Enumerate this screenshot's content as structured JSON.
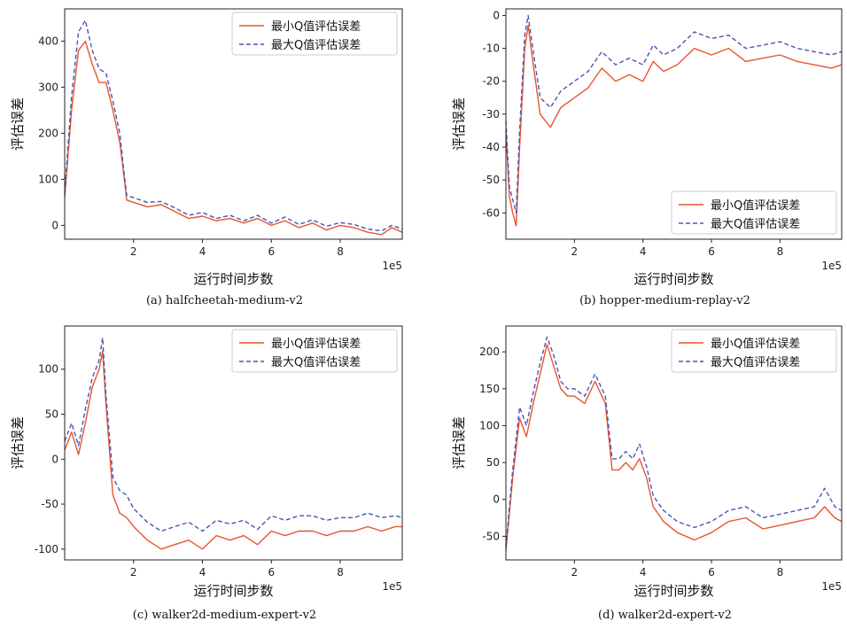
{
  "colors": {
    "min_series": "#e8542f",
    "max_series": "#4a55b5",
    "axis": "#222222"
  },
  "chart_data": [
    {
      "type": "line",
      "caption": "(a) halfcheetah-medium-v2",
      "xlabel": "运行时间步数",
      "ylabel": "评估误差",
      "x_multiplier": "1e5",
      "xlim": [
        0,
        9.8
      ],
      "ylim": [
        -30,
        470
      ],
      "xticks": [
        2,
        4,
        6,
        8
      ],
      "yticks": [
        0,
        100,
        200,
        300,
        400
      ],
      "legend": {
        "position": "top-right"
      },
      "series": [
        {
          "name": "最小Q值评估误差",
          "style": "solid",
          "x": [
            0,
            0.2,
            0.4,
            0.6,
            0.8,
            1.0,
            1.2,
            1.4,
            1.6,
            1.7,
            1.8,
            2.0,
            2.4,
            2.8,
            3.2,
            3.6,
            4.0,
            4.4,
            4.8,
            5.2,
            5.6,
            6.0,
            6.4,
            6.8,
            7.2,
            7.6,
            8.0,
            8.4,
            8.8,
            9.2,
            9.5,
            9.8
          ],
          "values": [
            60,
            250,
            380,
            400,
            350,
            310,
            310,
            250,
            180,
            120,
            55,
            50,
            40,
            45,
            30,
            15,
            20,
            10,
            15,
            5,
            15,
            0,
            10,
            -5,
            5,
            -10,
            0,
            -5,
            -15,
            -20,
            -5,
            -15
          ]
        },
        {
          "name": "最大Q值评估误差",
          "style": "dashed",
          "x": [
            0,
            0.2,
            0.4,
            0.6,
            0.8,
            1.0,
            1.2,
            1.4,
            1.6,
            1.7,
            1.8,
            2.0,
            2.4,
            2.8,
            3.2,
            3.6,
            4.0,
            4.4,
            4.8,
            5.2,
            5.6,
            6.0,
            6.4,
            6.8,
            7.2,
            7.6,
            8.0,
            8.4,
            8.8,
            9.2,
            9.5,
            9.8
          ],
          "values": [
            70,
            280,
            420,
            445,
            380,
            340,
            330,
            270,
            200,
            130,
            65,
            60,
            50,
            52,
            38,
            22,
            28,
            15,
            22,
            10,
            22,
            5,
            18,
            2,
            12,
            -2,
            6,
            2,
            -8,
            -12,
            0,
            -8
          ]
        }
      ]
    },
    {
      "type": "line",
      "caption": "(b) hopper-medium-replay-v2",
      "xlabel": "运行时间步数",
      "ylabel": "评估误差",
      "x_multiplier": "1e5",
      "xlim": [
        0,
        9.8
      ],
      "ylim": [
        -68,
        2
      ],
      "xticks": [
        2,
        4,
        6,
        8
      ],
      "yticks": [
        0,
        -10,
        -20,
        -30,
        -40,
        -50,
        -60
      ],
      "legend": {
        "position": "bottom-right"
      },
      "series": [
        {
          "name": "最小Q值评估误差",
          "style": "solid",
          "x": [
            0,
            0.1,
            0.2,
            0.3,
            0.4,
            0.55,
            0.65,
            0.8,
            1.0,
            1.3,
            1.6,
            2.0,
            2.4,
            2.8,
            3.2,
            3.6,
            4.0,
            4.3,
            4.6,
            5.0,
            5.5,
            6.0,
            6.5,
            7.0,
            7.5,
            8.0,
            8.5,
            9.0,
            9.5,
            9.8
          ],
          "values": [
            -35,
            -55,
            -60,
            -64,
            -40,
            -10,
            -3,
            -15,
            -30,
            -34,
            -28,
            -25,
            -22,
            -16,
            -20,
            -18,
            -20,
            -14,
            -17,
            -15,
            -10,
            -12,
            -10,
            -14,
            -13,
            -12,
            -14,
            -15,
            -16,
            -15
          ]
        },
        {
          "name": "最大Q值评估误差",
          "style": "dashed",
          "x": [
            0,
            0.1,
            0.2,
            0.3,
            0.4,
            0.55,
            0.65,
            0.8,
            1.0,
            1.3,
            1.6,
            2.0,
            2.4,
            2.8,
            3.2,
            3.6,
            4.0,
            4.3,
            4.6,
            5.0,
            5.5,
            6.0,
            6.5,
            7.0,
            7.5,
            8.0,
            8.5,
            9.0,
            9.5,
            9.8
          ],
          "values": [
            -32,
            -52,
            -56,
            -60,
            -35,
            -6,
            0,
            -11,
            -25,
            -28,
            -23,
            -20,
            -17,
            -11,
            -15,
            -13,
            -15,
            -9,
            -12,
            -10,
            -5,
            -7,
            -6,
            -10,
            -9,
            -8,
            -10,
            -11,
            -12,
            -11
          ]
        }
      ]
    },
    {
      "type": "line",
      "caption": "(c) walker2d-medium-expert-v2",
      "xlabel": "运行时间步数",
      "ylabel": "评估误差",
      "x_multiplier": "1e5",
      "xlim": [
        0,
        9.8
      ],
      "ylim": [
        -112,
        148
      ],
      "xticks": [
        2,
        4,
        6,
        8
      ],
      "yticks": [
        100,
        50,
        0,
        -50,
        -100
      ],
      "legend": {
        "position": "top-right"
      },
      "series": [
        {
          "name": "最小Q值评估误差",
          "style": "solid",
          "x": [
            0,
            0.2,
            0.4,
            0.6,
            0.8,
            1.0,
            1.1,
            1.2,
            1.4,
            1.6,
            1.8,
            2.0,
            2.4,
            2.8,
            3.2,
            3.6,
            4.0,
            4.4,
            4.8,
            5.2,
            5.6,
            6.0,
            6.4,
            6.8,
            7.2,
            7.6,
            8.0,
            8.4,
            8.8,
            9.2,
            9.6,
            9.8
          ],
          "values": [
            10,
            30,
            5,
            40,
            80,
            100,
            120,
            60,
            -40,
            -60,
            -65,
            -75,
            -90,
            -100,
            -95,
            -90,
            -100,
            -85,
            -90,
            -85,
            -95,
            -80,
            -85,
            -80,
            -80,
            -85,
            -80,
            -80,
            -75,
            -80,
            -75,
            -75
          ]
        },
        {
          "name": "最大Q值评估误差",
          "style": "dashed",
          "x": [
            0,
            0.2,
            0.4,
            0.6,
            0.8,
            1.0,
            1.1,
            1.2,
            1.4,
            1.6,
            1.8,
            2.0,
            2.4,
            2.8,
            3.2,
            3.6,
            4.0,
            4.4,
            4.8,
            5.2,
            5.6,
            6.0,
            6.4,
            6.8,
            7.2,
            7.6,
            8.0,
            8.4,
            8.8,
            9.2,
            9.6,
            9.8
          ],
          "values": [
            20,
            40,
            15,
            55,
            90,
            110,
            135,
            70,
            -20,
            -35,
            -40,
            -55,
            -70,
            -80,
            -75,
            -70,
            -80,
            -68,
            -72,
            -68,
            -78,
            -63,
            -68,
            -63,
            -63,
            -68,
            -65,
            -65,
            -60,
            -65,
            -63,
            -65
          ]
        }
      ]
    },
    {
      "type": "line",
      "caption": "(d) walker2d-expert-v2",
      "xlabel": "运行时间步数",
      "ylabel": "评估误差",
      "x_multiplier": "1e5",
      "xlim": [
        0,
        9.8
      ],
      "ylim": [
        -82,
        235
      ],
      "xticks": [
        2,
        4,
        6,
        8
      ],
      "yticks": [
        200,
        150,
        100,
        50,
        0,
        -50
      ],
      "legend": {
        "position": "top-right"
      },
      "series": [
        {
          "name": "最小Q值评估误差",
          "style": "solid",
          "x": [
            0,
            0.2,
            0.4,
            0.6,
            0.8,
            1.0,
            1.2,
            1.4,
            1.6,
            1.8,
            2.0,
            2.3,
            2.6,
            2.9,
            3.1,
            3.3,
            3.5,
            3.7,
            3.9,
            4.1,
            4.3,
            4.6,
            5.0,
            5.5,
            6.0,
            6.5,
            7.0,
            7.5,
            8.0,
            8.5,
            9.0,
            9.3,
            9.6,
            9.8
          ],
          "values": [
            -70,
            30,
            110,
            85,
            130,
            170,
            210,
            180,
            150,
            140,
            140,
            130,
            160,
            130,
            40,
            40,
            50,
            40,
            55,
            30,
            -10,
            -30,
            -45,
            -55,
            -45,
            -30,
            -25,
            -40,
            -35,
            -30,
            -25,
            -10,
            -25,
            -30
          ]
        },
        {
          "name": "最大Q值评估误差",
          "style": "dashed",
          "x": [
            0,
            0.2,
            0.4,
            0.6,
            0.8,
            1.0,
            1.2,
            1.4,
            1.6,
            1.8,
            2.0,
            2.3,
            2.6,
            2.9,
            3.1,
            3.3,
            3.5,
            3.7,
            3.9,
            4.1,
            4.3,
            4.6,
            5.0,
            5.5,
            6.0,
            6.5,
            7.0,
            7.5,
            8.0,
            8.5,
            9.0,
            9.3,
            9.6,
            9.8
          ],
          "values": [
            -65,
            40,
            125,
            100,
            145,
            185,
            220,
            195,
            160,
            150,
            150,
            140,
            170,
            140,
            55,
            55,
            65,
            55,
            75,
            45,
            5,
            -15,
            -30,
            -38,
            -30,
            -15,
            -10,
            -25,
            -20,
            -15,
            -10,
            15,
            -10,
            -15
          ]
        }
      ]
    }
  ]
}
